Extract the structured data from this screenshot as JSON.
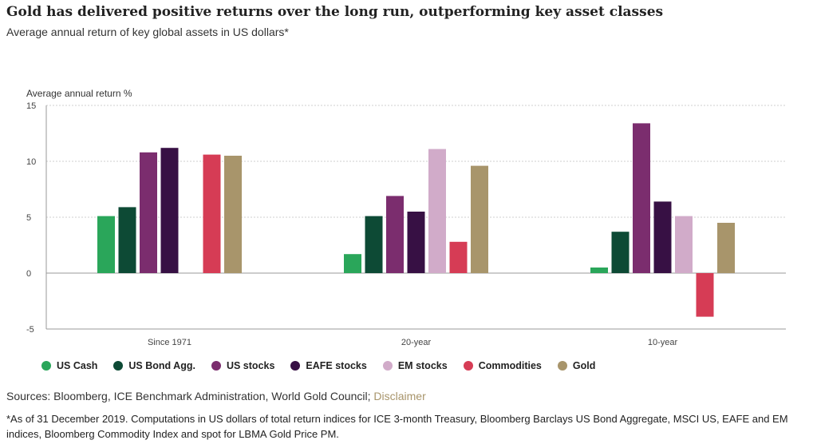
{
  "header": {
    "title": "Gold has delivered positive returns over the long run, outperforming key asset classes",
    "subtitle": "Average annual return of key global assets in US dollars*"
  },
  "chart_data": {
    "type": "bar",
    "ylabel": "Average annual return %",
    "ylim": [
      -5,
      15
    ],
    "yticks": [
      -5,
      0,
      5,
      10,
      15
    ],
    "grid": true,
    "legend_placement": "bottom",
    "categories": [
      "Since 1971",
      "20-year",
      "10-year"
    ],
    "series": [
      {
        "name": "US Cash",
        "color": "#2aa65a",
        "values": [
          5.1,
          1.7,
          0.5
        ]
      },
      {
        "name": "US Bond Agg.",
        "color": "#0d4a35",
        "values": [
          5.9,
          5.1,
          3.7
        ]
      },
      {
        "name": "US stocks",
        "color": "#7b2d6e",
        "values": [
          10.8,
          6.9,
          13.4
        ]
      },
      {
        "name": "EAFE stocks",
        "color": "#371044",
        "values": [
          11.2,
          5.5,
          6.4
        ]
      },
      {
        "name": "EM stocks",
        "color": "#d1abc9",
        "values": [
          null,
          11.1,
          5.1
        ]
      },
      {
        "name": "Commodities",
        "color": "#d63c55",
        "values": [
          10.6,
          2.8,
          -3.9
        ]
      },
      {
        "name": "Gold",
        "color": "#a8956b",
        "values": [
          10.5,
          9.6,
          4.5
        ]
      }
    ]
  },
  "footer": {
    "sources_text": "Sources: Bloomberg, ICE Benchmark Administration, World Gold Council; ",
    "disclaimer_label": "Disclaimer",
    "footnote": "*As of 31 December 2019. Computations in US dollars of total return indices for ICE 3-month Treasury, Bloomberg Barclays US Bond Aggregate, MSCI US, EAFE and EM indices, Bloomberg Commodity Index and spot for LBMA Gold Price PM."
  }
}
